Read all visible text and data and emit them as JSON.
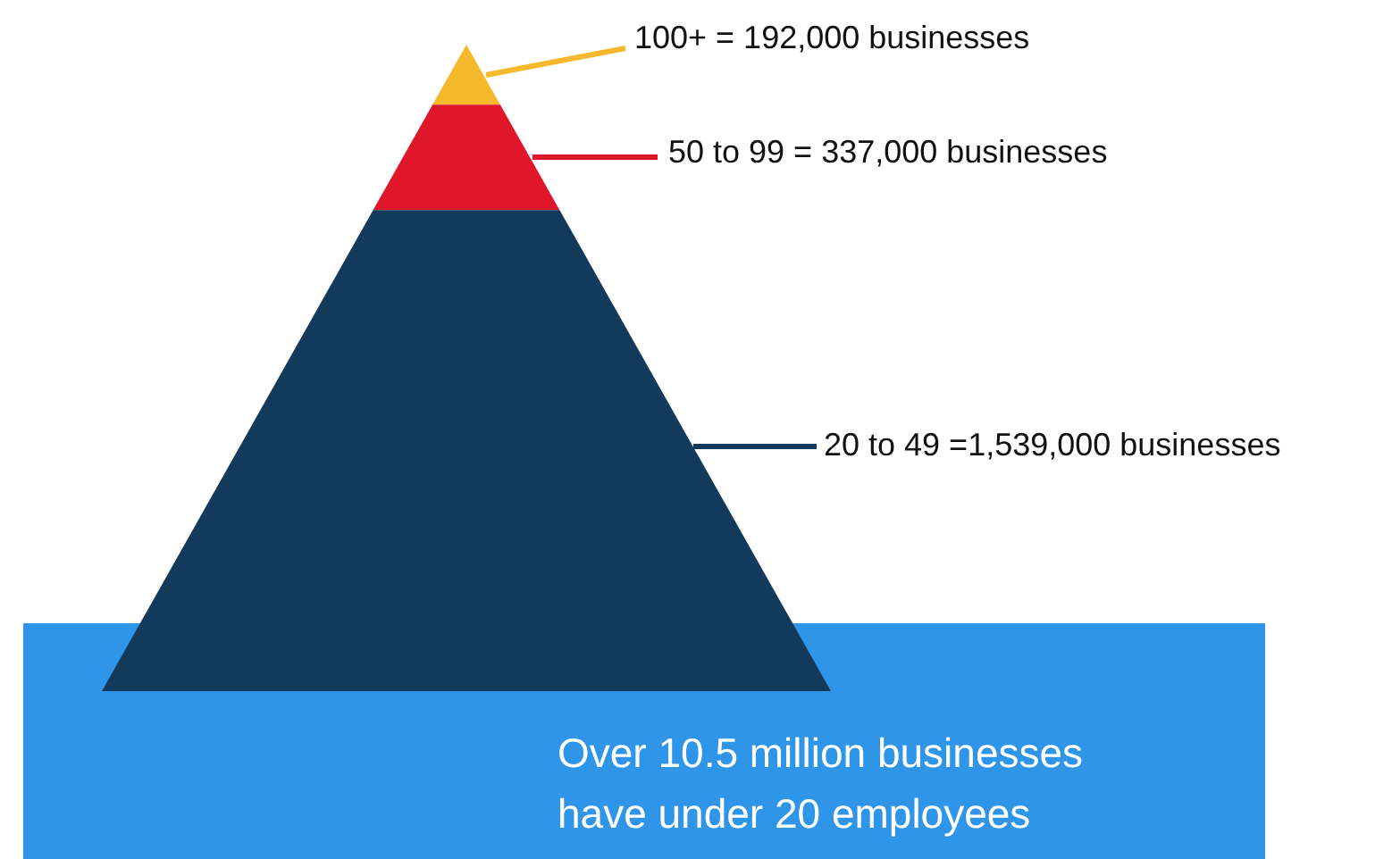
{
  "chart_data": {
    "type": "other",
    "categories": [
      null,
      null,
      null
    ],
    "values": [
      192000,
      337000,
      1539000
    ],
    "value_labels": [
      "100+ = 192,000 businesses",
      "50 to 99 = 337,000 businesses",
      "20 to 49 =1,539,000 businesses"
    ],
    "colors": [
      "#f6b92b",
      "#e0162b",
      "#133a5a"
    ],
    "annotations": [
      "Over 10.5 million businesses",
      "have under 20 employees"
    ]
  }
}
